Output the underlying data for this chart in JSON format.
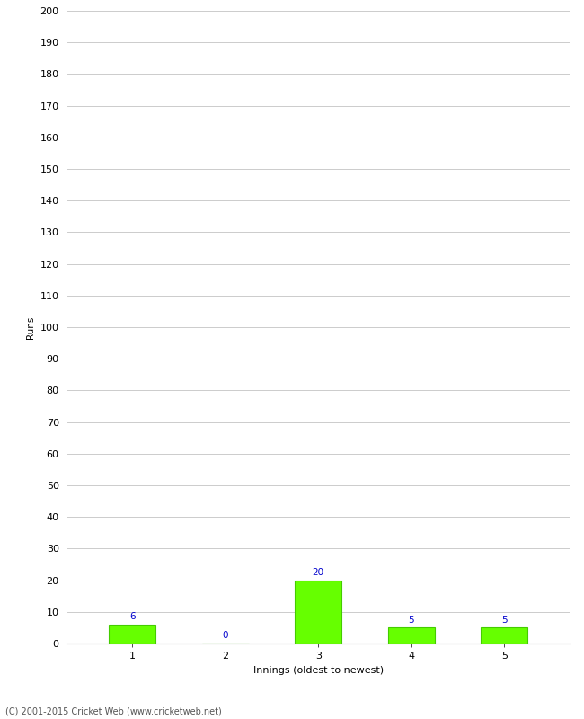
{
  "xlabel": "Innings (oldest to newest)",
  "ylabel": "Runs",
  "categories": [
    1,
    2,
    3,
    4,
    5
  ],
  "values": [
    6,
    0,
    20,
    5,
    5
  ],
  "bar_color": "#66ff00",
  "bar_edgecolor": "#44cc00",
  "annotation_color": "#0000cc",
  "ylim": [
    0,
    200
  ],
  "ytick_step": 10,
  "background_color": "#ffffff",
  "grid_color": "#cccccc",
  "footer": "(C) 2001-2015 Cricket Web (www.cricketweb.net)",
  "annotation_fontsize": 7.5,
  "axis_fontsize": 8,
  "ylabel_fontsize": 7.5,
  "xlabel_fontsize": 8
}
